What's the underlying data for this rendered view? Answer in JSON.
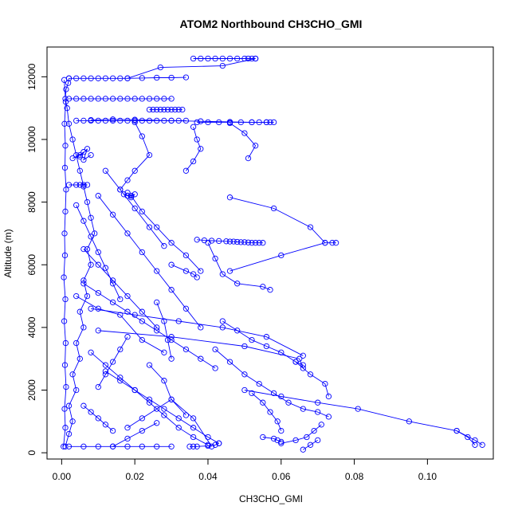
{
  "chart_data": {
    "type": "line",
    "title": "ATOM2 Northbound CH3CHO_GMI",
    "xlabel": "CH3CHO_GMI",
    "ylabel": "Altitude (m)",
    "xlim": [
      -0.004,
      0.118
    ],
    "ylim": [
      -200,
      12950
    ],
    "x_ticks": [
      0.0,
      0.02,
      0.04,
      0.06,
      0.08,
      0.1
    ],
    "x_tick_labels": [
      "0.00",
      "0.02",
      "0.04",
      "0.06",
      "0.08",
      "0.10"
    ],
    "y_ticks": [
      0,
      2000,
      4000,
      6000,
      8000,
      10000,
      12000
    ],
    "y_tick_labels": [
      "0",
      "2000",
      "4000",
      "6000",
      "8000",
      "10000",
      "12000"
    ],
    "grid": false,
    "series_color": "#0000ff",
    "marker": "open-circle",
    "series": [
      {
        "x": [
          0.001,
          0.002,
          0.003,
          0.002,
          0.004,
          0.003,
          0.005,
          0.004,
          0.006,
          0.005,
          0.007,
          0.006,
          0.008,
          0.007,
          0.009,
          0.008,
          0.007,
          0.006,
          0.005,
          0.004,
          0.003,
          0.002,
          0.0015,
          0.001,
          0.0012,
          0.0018,
          0.002
        ],
        "y": [
          200,
          600,
          1000,
          1500,
          2000,
          2500,
          3000,
          3500,
          4000,
          4500,
          5000,
          5500,
          6000,
          6500,
          7000,
          7500,
          8000,
          8500,
          9000,
          9500,
          10000,
          10500,
          11000,
          11300,
          11600,
          11800,
          11950
        ]
      },
      {
        "x": [
          0.0005,
          0.001,
          0.0008,
          0.0012,
          0.0009,
          0.0011,
          0.0007,
          0.001,
          0.0006,
          0.0009,
          0.0008,
          0.001,
          0.0012,
          0.0009,
          0.001,
          0.0008,
          0.0011,
          0.0007
        ],
        "y": [
          200,
          800,
          1400,
          2100,
          2800,
          3500,
          4200,
          4900,
          5600,
          6300,
          7000,
          7700,
          8400,
          9100,
          9800,
          10500,
          11200,
          11900
        ]
      },
      {
        "x": [
          0.002,
          0.004,
          0.006,
          0.008,
          0.01,
          0.012,
          0.014,
          0.016,
          0.018,
          0.022,
          0.026,
          0.03,
          0.034
        ],
        "y": [
          11950,
          11950,
          11950,
          11950,
          11950,
          11950,
          11950,
          11950,
          11950,
          11960,
          11970,
          11970,
          11980
        ]
      },
      {
        "x": [
          0.036,
          0.038,
          0.04,
          0.042,
          0.044,
          0.046,
          0.048,
          0.05,
          0.051,
          0.052,
          0.053
        ],
        "y": [
          12580,
          12580,
          12580,
          12580,
          12580,
          12580,
          12580,
          12580,
          12580,
          12580,
          12580
        ]
      },
      {
        "x": [
          0.018,
          0.027,
          0.044,
          0.053
        ],
        "y": [
          11950,
          12300,
          12350,
          12580
        ]
      },
      {
        "x": [
          0.002,
          0.004,
          0.006,
          0.008,
          0.01,
          0.012,
          0.014,
          0.016,
          0.018,
          0.02,
          0.022,
          0.024,
          0.026,
          0.028,
          0.03
        ],
        "y": [
          11300,
          11300,
          11300,
          11300,
          11300,
          11300,
          11300,
          11300,
          11300,
          11300,
          11300,
          11300,
          11300,
          11300,
          11300
        ]
      },
      {
        "x": [
          0.024,
          0.025,
          0.026,
          0.027,
          0.028,
          0.029,
          0.03,
          0.031,
          0.032,
          0.033
        ],
        "y": [
          10950,
          10950,
          10950,
          10950,
          10950,
          10950,
          10950,
          10950,
          10950,
          10950
        ]
      },
      {
        "x": [
          0.004,
          0.006,
          0.008,
          0.01,
          0.012,
          0.014,
          0.016,
          0.018,
          0.02,
          0.022,
          0.024,
          0.026,
          0.028,
          0.03,
          0.032,
          0.034
        ],
        "y": [
          10600,
          10600,
          10600,
          10600,
          10600,
          10600,
          10600,
          10600,
          10600,
          10600,
          10600,
          10600,
          10600,
          10600,
          10600,
          10600
        ]
      },
      {
        "x": [
          0.037,
          0.04,
          0.043,
          0.046,
          0.049,
          0.052,
          0.054,
          0.056,
          0.057,
          0.058
        ],
        "y": [
          10550,
          10550,
          10550,
          10550,
          10550,
          10550,
          10550,
          10550,
          10550,
          10550
        ]
      },
      {
        "x": [
          0.008,
          0.014,
          0.02,
          0.03,
          0.038,
          0.046,
          0.052,
          0.056
        ],
        "y": [
          10620,
          10640,
          10630,
          10600,
          10580,
          10560,
          10550,
          10550
        ]
      },
      {
        "x": [
          0.046,
          0.05,
          0.053,
          0.051
        ],
        "y": [
          10520,
          10200,
          9800,
          9400
        ]
      },
      {
        "x": [
          0.036,
          0.037,
          0.038,
          0.036,
          0.034
        ],
        "y": [
          10400,
          10000,
          9700,
          9300,
          9000
        ]
      },
      {
        "x": [
          0.02,
          0.022,
          0.024,
          0.02,
          0.018,
          0.016
        ],
        "y": [
          10550,
          10100,
          9500,
          9000,
          8700,
          8400
        ]
      },
      {
        "x": [
          0.003,
          0.005,
          0.006,
          0.005,
          0.007,
          0.006,
          0.008
        ],
        "y": [
          9400,
          9500,
          9600,
          9450,
          9700,
          9350,
          9500
        ]
      },
      {
        "x": [
          0.002,
          0.004,
          0.005,
          0.006,
          0.007
        ],
        "y": [
          8550,
          8550,
          8550,
          8550,
          8550
        ]
      },
      {
        "x": [
          0.017,
          0.018,
          0.019,
          0.02,
          0.019,
          0.018
        ],
        "y": [
          8250,
          8200,
          8150,
          8250,
          8200,
          8300
        ]
      },
      {
        "x": [
          0.019,
          0.022,
          0.026,
          0.03,
          0.034,
          0.038
        ],
        "y": [
          8200,
          7700,
          7200,
          6700,
          6300,
          5800
        ]
      },
      {
        "x": [
          0.046,
          0.058,
          0.068,
          0.072,
          0.074,
          0.075
        ],
        "y": [
          8150,
          7800,
          7200,
          6700,
          6700,
          6700
        ]
      },
      {
        "x": [
          0.037,
          0.039,
          0.041,
          0.043,
          0.045,
          0.046,
          0.047,
          0.048,
          0.049,
          0.05,
          0.051,
          0.052,
          0.053,
          0.054,
          0.055
        ],
        "y": [
          6800,
          6780,
          6770,
          6760,
          6750,
          6740,
          6740,
          6730,
          6720,
          6720,
          6710,
          6700,
          6700,
          6700,
          6700
        ]
      },
      {
        "x": [
          0.046,
          0.06,
          0.072
        ],
        "y": [
          5800,
          6300,
          6700
        ]
      },
      {
        "x": [
          0.04,
          0.042,
          0.044,
          0.048,
          0.055,
          0.057
        ],
        "y": [
          6700,
          6200,
          5700,
          5400,
          5300,
          5200
        ]
      },
      {
        "x": [
          0.03,
          0.034,
          0.036,
          0.037
        ],
        "y": [
          6000,
          5800,
          5700,
          5600
        ]
      },
      {
        "x": [
          0.006,
          0.01,
          0.014,
          0.018,
          0.022,
          0.026,
          0.03,
          0.034,
          0.038,
          0.042
        ],
        "y": [
          5400,
          5100,
          4800,
          4500,
          4200,
          3900,
          3600,
          3300,
          3000,
          2700
        ]
      },
      {
        "x": [
          0.008,
          0.02,
          0.032,
          0.044,
          0.056,
          0.066
        ],
        "y": [
          4600,
          4400,
          4200,
          4000,
          3700,
          3100
        ]
      },
      {
        "x": [
          0.044,
          0.048,
          0.052,
          0.056,
          0.06,
          0.064,
          0.066
        ],
        "y": [
          4200,
          3900,
          3600,
          3400,
          3200,
          2900,
          2800
        ]
      },
      {
        "x": [
          0.01,
          0.03,
          0.05,
          0.065,
          0.066
        ],
        "y": [
          3900,
          3700,
          3400,
          3000,
          2700
        ]
      },
      {
        "x": [
          0.042,
          0.046,
          0.05,
          0.054,
          0.058,
          0.062,
          0.066,
          0.07,
          0.073
        ],
        "y": [
          3300,
          2900,
          2500,
          2200,
          1900,
          1600,
          1400,
          1300,
          1150
        ]
      },
      {
        "x": [
          0.064,
          0.068,
          0.072,
          0.073
        ],
        "y": [
          2900,
          2500,
          2200,
          1800
        ]
      },
      {
        "x": [
          0.052,
          0.055,
          0.057,
          0.059,
          0.06
        ],
        "y": [
          1900,
          1600,
          1300,
          1000,
          700
        ]
      },
      {
        "x": [
          0.05,
          0.06,
          0.07,
          0.081,
          0.095,
          0.108,
          0.113,
          0.115
        ],
        "y": [
          2000,
          1800,
          1600,
          1400,
          1000,
          700,
          400,
          250
        ]
      },
      {
        "x": [
          0.108,
          0.111,
          0.113
        ],
        "y": [
          700,
          500,
          250
        ]
      },
      {
        "x": [
          0.06,
          0.064,
          0.067,
          0.069,
          0.071
        ],
        "y": [
          300,
          400,
          500,
          700,
          900
        ]
      },
      {
        "x": [
          0.055,
          0.058,
          0.059,
          0.06
        ],
        "y": [
          500,
          450,
          400,
          350
        ]
      },
      {
        "x": [
          0.066,
          0.068,
          0.07
        ],
        "y": [
          100,
          250,
          400
        ]
      },
      {
        "x": [
          0.012,
          0.016,
          0.02,
          0.024,
          0.028,
          0.032,
          0.036,
          0.04,
          0.043
        ],
        "y": [
          2600,
          2300,
          2000,
          1700,
          1400,
          1100,
          800,
          500,
          300
        ]
      },
      {
        "x": [
          0.008,
          0.012,
          0.016,
          0.02,
          0.024,
          0.028,
          0.032,
          0.036,
          0.04
        ],
        "y": [
          3200,
          2800,
          2400,
          2000,
          1600,
          1200,
          800,
          500,
          250
        ]
      },
      {
        "x": [
          0.002,
          0.006,
          0.01,
          0.014,
          0.018,
          0.022,
          0.026,
          0.03
        ],
        "y": [
          200,
          200,
          200,
          200,
          200,
          200,
          200,
          200
        ]
      },
      {
        "x": [
          0.035,
          0.036,
          0.037,
          0.04,
          0.042,
          0.043
        ],
        "y": [
          200,
          200,
          200,
          220,
          250,
          300
        ]
      },
      {
        "x": [
          0.018,
          0.022,
          0.026,
          0.03,
          0.036,
          0.041
        ],
        "y": [
          800,
          1100,
          1400,
          1700,
          1100,
          200
        ]
      },
      {
        "x": [
          0.024,
          0.028,
          0.03,
          0.034
        ],
        "y": [
          2800,
          2300,
          1700,
          1200
        ]
      },
      {
        "x": [
          0.004,
          0.006,
          0.008,
          0.01,
          0.012,
          0.014,
          0.016
        ],
        "y": [
          7900,
          7400,
          6900,
          6400,
          5900,
          5400,
          4900
        ]
      },
      {
        "x": [
          0.006,
          0.01,
          0.014,
          0.018,
          0.022,
          0.026
        ],
        "y": [
          6500,
          6000,
          5500,
          5000,
          4500,
          4000
        ]
      },
      {
        "x": [
          0.01,
          0.014,
          0.018,
          0.022,
          0.026,
          0.03,
          0.034,
          0.038
        ],
        "y": [
          8200,
          7600,
          7000,
          6400,
          5800,
          5200,
          4600,
          4000
        ]
      },
      {
        "x": [
          0.012,
          0.016,
          0.02,
          0.024,
          0.028
        ],
        "y": [
          9000,
          8400,
          7800,
          7200,
          6600
        ]
      },
      {
        "x": [
          0.026,
          0.028,
          0.029,
          0.03
        ],
        "y": [
          4800,
          4200,
          3600,
          3000
        ]
      },
      {
        "x": [
          0.018,
          0.016,
          0.014,
          0.012,
          0.01
        ],
        "y": [
          3700,
          3300,
          2900,
          2500,
          2100
        ]
      },
      {
        "x": [
          0.006,
          0.008,
          0.01,
          0.012,
          0.014
        ],
        "y": [
          1500,
          1300,
          1100,
          900,
          700
        ]
      },
      {
        "x": [
          0.014,
          0.018,
          0.022,
          0.026
        ],
        "y": [
          200,
          450,
          700,
          950
        ]
      },
      {
        "x": [
          0.004,
          0.01,
          0.016,
          0.022,
          0.028
        ],
        "y": [
          5000,
          4600,
          4400,
          3600,
          3200
        ]
      }
    ]
  }
}
